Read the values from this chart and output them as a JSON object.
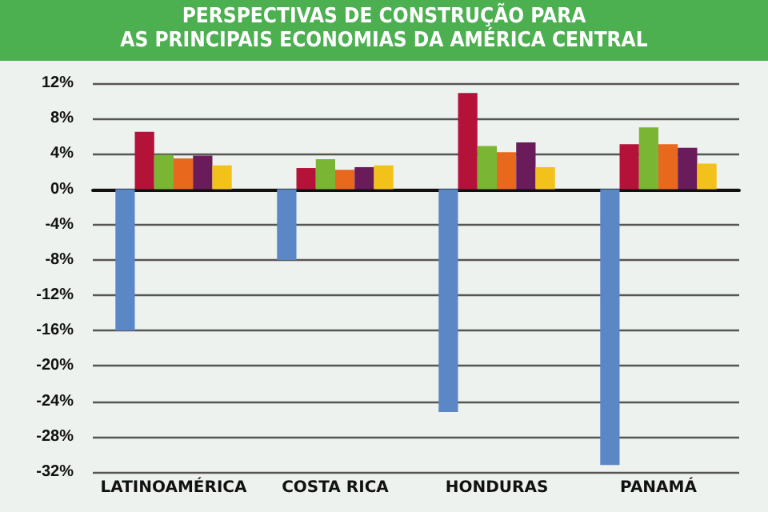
{
  "chart_data": {
    "type": "bar",
    "title": "PERSPECTIVAS DE CONSTRUÇÃO PARA\nAS PRINCIPAIS ECONOMIAS DA AMÉRICA CENTRAL",
    "categories": [
      "LATINOAMÉRICA",
      "COSTA RICA",
      "HONDURAS",
      "PANAMÁ"
    ],
    "series": [
      {
        "color": "#5b87c7",
        "values": [
          -16,
          -8,
          -25.2,
          -31.2
        ]
      },
      {
        "color": "#b5123a",
        "values": [
          6.5,
          2.4,
          10.9,
          5.1
        ]
      },
      {
        "color": "#7ab534",
        "values": [
          3.9,
          3.4,
          4.9,
          7.0
        ]
      },
      {
        "color": "#e8681e",
        "values": [
          3.5,
          2.2,
          4.2,
          5.1
        ]
      },
      {
        "color": "#6a1b5a",
        "values": [
          3.8,
          2.5,
          5.3,
          4.7
        ]
      },
      {
        "color": "#f2c21a",
        "values": [
          2.7,
          2.7,
          2.5,
          2.9
        ]
      }
    ],
    "ylim": [
      -32,
      12
    ],
    "yticks": [
      {
        "value": -32,
        "label": "-32%"
      },
      {
        "value": -28,
        "label": "-28%"
      },
      {
        "value": -24,
        "label": "-24%"
      },
      {
        "value": -20,
        "label": "-20%"
      },
      {
        "value": -16,
        "label": "-16%"
      },
      {
        "value": -12,
        "label": "-12%"
      },
      {
        "value": -8,
        "label": "-8%"
      },
      {
        "value": -4,
        "label": "-4%"
      },
      {
        "value": 0,
        "label": "0%"
      },
      {
        "value": 4,
        "label": "4%"
      },
      {
        "value": 8,
        "label": "8%"
      },
      {
        "value": 12,
        "label": "12%"
      }
    ],
    "grid": "y"
  }
}
